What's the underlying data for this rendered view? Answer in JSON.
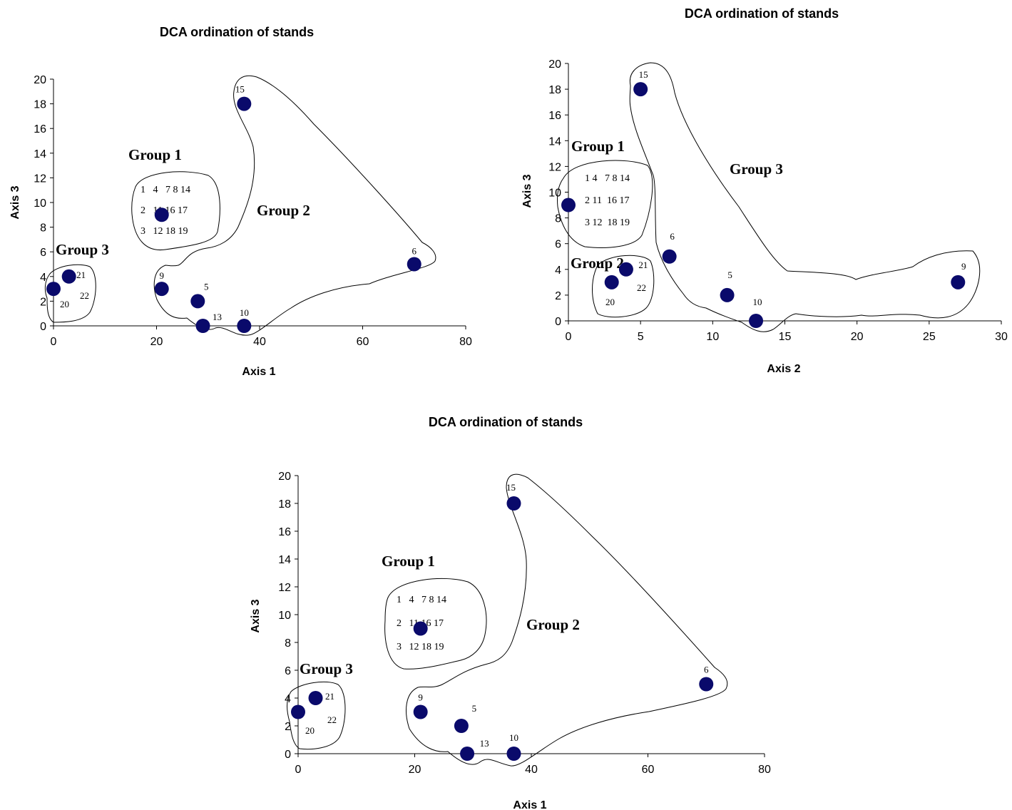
{
  "chart_data": [
    {
      "type": "scatter",
      "title": "DCA ordination of stands",
      "xlabel": "Axis 1",
      "ylabel": "Axis 3",
      "xlim": [
        0,
        80
      ],
      "ylim": [
        0,
        20
      ],
      "xticks": [
        "0",
        "20",
        "40",
        "60",
        "80"
      ],
      "yticks": [
        "0",
        "2",
        "4",
        "6",
        "8",
        "10",
        "12",
        "14",
        "16",
        "18",
        "20"
      ],
      "grid": false,
      "marker_color": "#0a0a6b",
      "points": [
        {
          "x": 37,
          "y": 18,
          "label": "15"
        },
        {
          "x": 21,
          "y": 9,
          "label": ""
        },
        {
          "x": 70,
          "y": 5,
          "label": "6"
        },
        {
          "x": 3,
          "y": 4,
          "label": "21"
        },
        {
          "x": 0,
          "y": 3,
          "label": ""
        },
        {
          "x": 21,
          "y": 3,
          "label": "9"
        },
        {
          "x": 28,
          "y": 2,
          "label": "5"
        },
        {
          "x": 29,
          "y": 0,
          "label": "13"
        },
        {
          "x": 37,
          "y": 0,
          "label": "10"
        }
      ],
      "annotations": [
        "20",
        "22"
      ],
      "groups": [
        {
          "name": "Group 1",
          "members": [
            "1   4   7 8 14",
            "2   11 16 17",
            "3   12 18 19"
          ]
        },
        {
          "name": "Group 2"
        },
        {
          "name": "Group 3"
        }
      ]
    },
    {
      "type": "scatter",
      "title": "DCA ordination of stands",
      "xlabel": "Axis 2",
      "ylabel": "Axis 3",
      "xlim": [
        0,
        30
      ],
      "ylim": [
        0,
        20
      ],
      "xticks": [
        "0",
        "5",
        "10",
        "15",
        "20",
        "25",
        "30"
      ],
      "yticks": [
        "0",
        "2",
        "4",
        "6",
        "8",
        "10",
        "12",
        "14",
        "16",
        "18",
        "20"
      ],
      "grid": false,
      "marker_color": "#0a0a6b",
      "points": [
        {
          "x": 5,
          "y": 18,
          "label": "15"
        },
        {
          "x": 0,
          "y": 9,
          "label": ""
        },
        {
          "x": 7,
          "y": 5,
          "label": "6"
        },
        {
          "x": 4,
          "y": 4,
          "label": "21"
        },
        {
          "x": 3,
          "y": 3,
          "label": ""
        },
        {
          "x": 11,
          "y": 2,
          "label": "5"
        },
        {
          "x": 13,
          "y": 0,
          "label": "10"
        },
        {
          "x": 27,
          "y": 3,
          "label": "9"
        }
      ],
      "annotations": [
        "20",
        "22"
      ],
      "groups": [
        {
          "name": "Group 1",
          "members": [
            "1 4   7 8 14",
            "2 11  16 17",
            "3 12  18 19"
          ]
        },
        {
          "name": "Group 2"
        },
        {
          "name": "Group 3"
        }
      ]
    },
    {
      "type": "scatter",
      "title": "DCA ordination of stands",
      "xlabel": "Axis 1",
      "ylabel": "Axis 3",
      "xlim": [
        0,
        80
      ],
      "ylim": [
        0,
        20
      ],
      "xticks": [
        "0",
        "20",
        "40",
        "60",
        "80"
      ],
      "yticks": [
        "0",
        "2",
        "4",
        "6",
        "8",
        "10",
        "12",
        "14",
        "16",
        "18",
        "20"
      ],
      "grid": false,
      "marker_color": "#0a0a6b",
      "points": [
        {
          "x": 37,
          "y": 18,
          "label": "15"
        },
        {
          "x": 21,
          "y": 9,
          "label": ""
        },
        {
          "x": 70,
          "y": 5,
          "label": "6"
        },
        {
          "x": 3,
          "y": 4,
          "label": "21"
        },
        {
          "x": 0,
          "y": 3,
          "label": ""
        },
        {
          "x": 21,
          "y": 3,
          "label": "9"
        },
        {
          "x": 28,
          "y": 2,
          "label": "5"
        },
        {
          "x": 29,
          "y": 0,
          "label": "13"
        },
        {
          "x": 37,
          "y": 0,
          "label": "10"
        }
      ],
      "annotations": [
        "20",
        "22"
      ],
      "groups": [
        {
          "name": "Group 1",
          "members": [
            "1   4   7 8 14",
            "2   11 16 17",
            "3   12 18 19"
          ]
        },
        {
          "name": "Group 2"
        },
        {
          "name": "Group 3"
        }
      ]
    }
  ]
}
